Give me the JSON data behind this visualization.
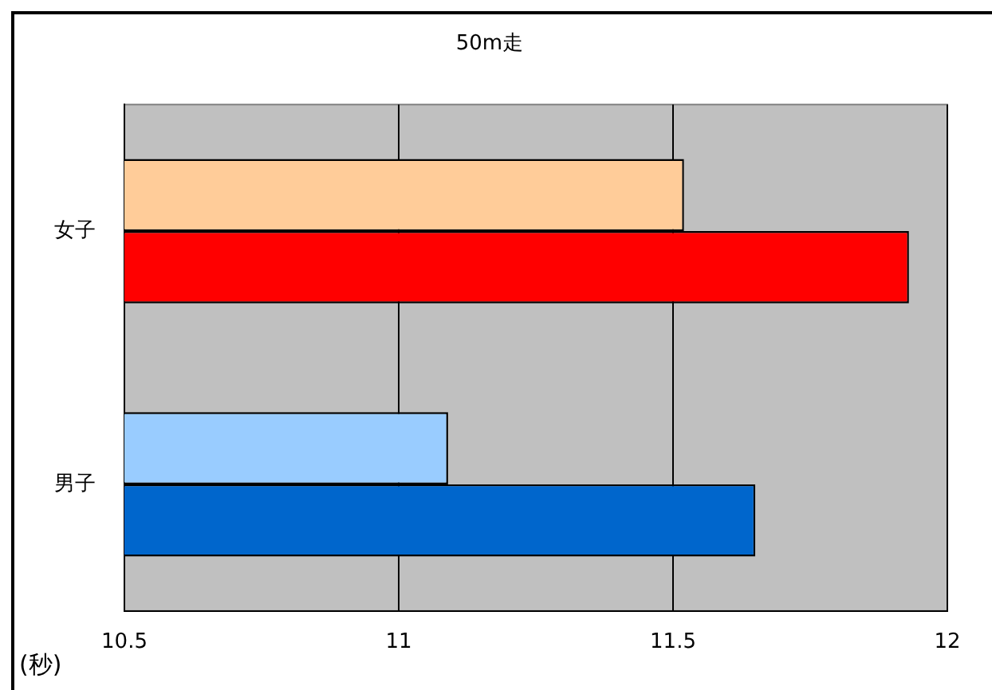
{
  "chart_data": {
    "type": "bar",
    "orientation": "horizontal",
    "title": "50m走",
    "xlabel": "(秒)",
    "categories": [
      "女子",
      "男子"
    ],
    "series": [
      {
        "colors": [
          "#ffcc99",
          "#99ccff"
        ],
        "values": [
          11.52,
          11.09
        ]
      },
      {
        "colors": [
          "#ff0000",
          "#0066cc"
        ],
        "values": [
          11.93,
          11.65
        ]
      }
    ],
    "xlim": [
      10.5,
      12
    ],
    "xticks": [
      10.5,
      11,
      11.5,
      12
    ],
    "grid": "x",
    "legend": false
  }
}
